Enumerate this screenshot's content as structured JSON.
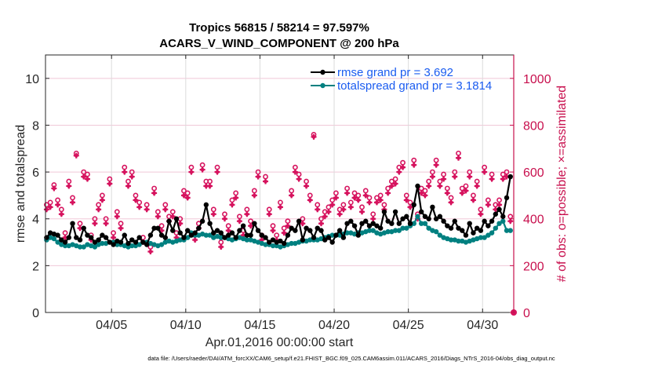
{
  "chart_data": {
    "type": "line",
    "title": [
      "Tropics 56815 / 58214 = 97.597%",
      "ACARS_V_WIND_COMPONENT @ 200 hPa"
    ],
    "xlabel": "Apr.01,2016 00:00:00 start",
    "ylabel": "rmse and totalspread",
    "ylabel_right": "# of obs: o=possible; ×=assimilated",
    "x_ticks": [
      {
        "day": 4,
        "label": "04/05"
      },
      {
        "day": 9,
        "label": "04/10"
      },
      {
        "day": 14,
        "label": "04/15"
      },
      {
        "day": 19,
        "label": "04/20"
      },
      {
        "day": 24,
        "label": "04/25"
      },
      {
        "day": 29,
        "label": "04/30"
      }
    ],
    "xlim_days": [
      -0.45,
      31.1
    ],
    "x_start_day": -0.375,
    "x_step_day": 0.25,
    "ylim": [
      0,
      11
    ],
    "y_ticks": [
      0,
      2,
      4,
      6,
      8,
      10
    ],
    "ylim_right": [
      0,
      1100
    ],
    "y_ticks_right": [
      0,
      200,
      400,
      600,
      800,
      1000
    ],
    "grid": true,
    "legend_position": "top-right",
    "colors": {
      "rmse": "#000000",
      "totalspread": "#008080",
      "obs": "#d6135e",
      "legend_text": "#1a5cf0",
      "right_axis": "#c8104e",
      "grid": "#f0c8d8"
    },
    "series": [
      {
        "name": "rmse grand pr = 3.692",
        "key": "rmse",
        "values": [
          3.2,
          3.4,
          3.35,
          3.3,
          3.1,
          3.0,
          3.2,
          3.8,
          3.2,
          3.1,
          3.6,
          3.3,
          3.2,
          3.0,
          3.1,
          3.3,
          3.2,
          3.0,
          2.9,
          3.05,
          3.0,
          3.3,
          2.95,
          3.1,
          3.0,
          3.2,
          3.0,
          2.9,
          3.3,
          3.6,
          3.6,
          3.3,
          3.2,
          3.9,
          3.5,
          4.0,
          3.4,
          3.2,
          3.5,
          3.3,
          3.4,
          3.6,
          3.9,
          4.6,
          3.8,
          3.4,
          3.5,
          3.4,
          3.2,
          3.3,
          3.4,
          3.2,
          3.5,
          3.7,
          3.3,
          3.3,
          3.8,
          3.5,
          3.3,
          3.2,
          3.0,
          3.1,
          3.0,
          3.05,
          2.95,
          3.3,
          3.6,
          3.5,
          3.9,
          3.1,
          3.6,
          3.5,
          3.2,
          3.6,
          3.5,
          3.1,
          3.2,
          3.0,
          3.3,
          3.5,
          3.2,
          3.8,
          3.9,
          3.7,
          3.3,
          3.8,
          3.9,
          3.7,
          3.8,
          3.7,
          3.6,
          4.3,
          3.9,
          3.8,
          4.3,
          3.8,
          4.0,
          4.1,
          3.8,
          4.6,
          5.4,
          4.3,
          4.1,
          4.0,
          4.5,
          4.0,
          4.1,
          3.9,
          3.7,
          3.6,
          3.9,
          3.6,
          3.5,
          3.3,
          3.8,
          3.4,
          3.6,
          3.5,
          3.9,
          3.7,
          3.9,
          4.2,
          4.4,
          4.1,
          4.9,
          5.8,
          3.8,
          3.6,
          3.5,
          3.2,
          3.4,
          3.6,
          3.7,
          3.8,
          3.6,
          3.5,
          3.6,
          3.4,
          3.3,
          3.25
        ],
        "grand_value": 3.692
      },
      {
        "name": "totalspread grand pr = 3.1814",
        "key": "totalspread",
        "values": [
          3.1,
          3.2,
          3.15,
          3.0,
          2.9,
          2.85,
          2.85,
          2.9,
          2.85,
          2.8,
          2.8,
          2.9,
          2.85,
          2.8,
          2.9,
          2.95,
          2.95,
          3.0,
          3.0,
          2.9,
          2.9,
          2.85,
          2.8,
          2.85,
          2.85,
          2.9,
          3.0,
          3.0,
          2.95,
          2.9,
          2.85,
          2.9,
          3.0,
          3.05,
          3.0,
          3.05,
          3.1,
          3.1,
          3.2,
          3.4,
          3.3,
          3.3,
          3.35,
          3.3,
          3.3,
          3.2,
          3.25,
          3.2,
          3.2,
          3.15,
          3.1,
          3.15,
          3.2,
          3.15,
          3.1,
          3.1,
          3.05,
          3.0,
          2.95,
          2.9,
          2.9,
          2.85,
          2.85,
          2.8,
          2.85,
          2.9,
          2.95,
          2.95,
          3.0,
          3.05,
          3.05,
          3.1,
          3.1,
          3.1,
          3.15,
          3.2,
          3.25,
          3.3,
          3.3,
          3.3,
          3.35,
          3.4,
          3.4,
          3.35,
          3.4,
          3.4,
          3.45,
          3.5,
          3.5,
          3.4,
          3.35,
          3.4,
          3.45,
          3.45,
          3.5,
          3.5,
          3.6,
          3.6,
          3.7,
          3.8,
          4.1,
          3.8,
          3.8,
          3.6,
          3.5,
          3.45,
          3.3,
          3.2,
          3.15,
          3.1,
          3.1,
          3.05,
          3.05,
          3.0,
          3.05,
          3.1,
          3.15,
          3.2,
          3.2,
          3.3,
          3.4,
          3.6,
          3.8,
          3.9,
          3.5,
          3.5,
          3.4,
          3.35,
          3.3,
          3.2,
          3.1,
          3.15,
          3.1,
          3.1,
          3.05,
          3.0,
          2.95
        ],
        "grand_value": 3.1814
      },
      {
        "name": "obs possible",
        "key": "obs_possible",
        "marker": "o",
        "values": [
          460,
          470,
          545,
          480,
          440,
          340,
          560,
          490,
          680,
          380,
          600,
          590,
          330,
          400,
          460,
          500,
          400,
          570,
          340,
          430,
          380,
          620,
          560,
          600,
          500,
          470,
          320,
          460,
          280,
          530,
          430,
          370,
          460,
          410,
          430,
          340,
          400,
          520,
          510,
          620,
          330,
          380,
          630,
          560,
          560,
          440,
          620,
          300,
          420,
          370,
          480,
          510,
          410,
          350,
          440,
          390,
          520,
          600,
          330,
          580,
          440,
          370,
          330,
          470,
          360,
          390,
          520,
          620,
          590,
          400,
          560,
          500,
          760,
          460,
          400,
          430,
          450,
          480,
          510,
          440,
          460,
          530,
          470,
          510,
          500,
          450,
          520,
          490,
          420,
          490,
          500,
          460,
          530,
          560,
          570,
          620,
          640,
          500,
          470,
          650,
          420,
          530,
          520,
          560,
          600,
          650,
          560,
          590,
          530,
          490,
          600,
          680,
          530,
          540,
          600,
          500,
          560,
          440,
          620,
          480,
          590,
          460,
          480,
          590,
          600,
          410,
          600,
          590,
          520,
          480,
          450,
          600,
          570,
          460,
          660,
          680
        ],
        "note": "o markers plotted just above the assimilated counts"
      },
      {
        "name": "obs assimilated",
        "key": "obs_assimilated",
        "marker": "*",
        "values": [
          440,
          450,
          530,
          460,
          420,
          320,
          540,
          470,
          670,
          360,
          580,
          570,
          310,
          380,
          440,
          480,
          380,
          550,
          320,
          410,
          360,
          600,
          540,
          580,
          480,
          450,
          300,
          440,
          260,
          510,
          410,
          350,
          440,
          390,
          410,
          320,
          380,
          500,
          490,
          600,
          310,
          360,
          610,
          540,
          540,
          420,
          600,
          280,
          400,
          350,
          460,
          490,
          390,
          330,
          420,
          370,
          500,
          580,
          310,
          560,
          420,
          350,
          310,
          450,
          340,
          370,
          500,
          600,
          570,
          380,
          540,
          480,
          750,
          440,
          380,
          410,
          430,
          460,
          490,
          420,
          440,
          510,
          450,
          490,
          480,
          430,
          500,
          470,
          400,
          470,
          480,
          440,
          510,
          540,
          550,
          600,
          620,
          480,
          450,
          630,
          400,
          510,
          500,
          540,
          580,
          630,
          540,
          570,
          510,
          470,
          580,
          660,
          510,
          520,
          580,
          480,
          540,
          420,
          600,
          460,
          570,
          440,
          460,
          570,
          580,
          390,
          580,
          570,
          500,
          460,
          430,
          580,
          550,
          440,
          640,
          670
        ]
      }
    ],
    "last_obs_marker_at_zero": true,
    "footnote": "data file: /Users/raeder/DAI/ATM_forcXX/CAM6_setup/f.e21.FHIST_BGC.f09_025.CAM6assim.011/ACARS_2016/Diags_NTrS_2016-04/obs_diag_output.nc"
  }
}
